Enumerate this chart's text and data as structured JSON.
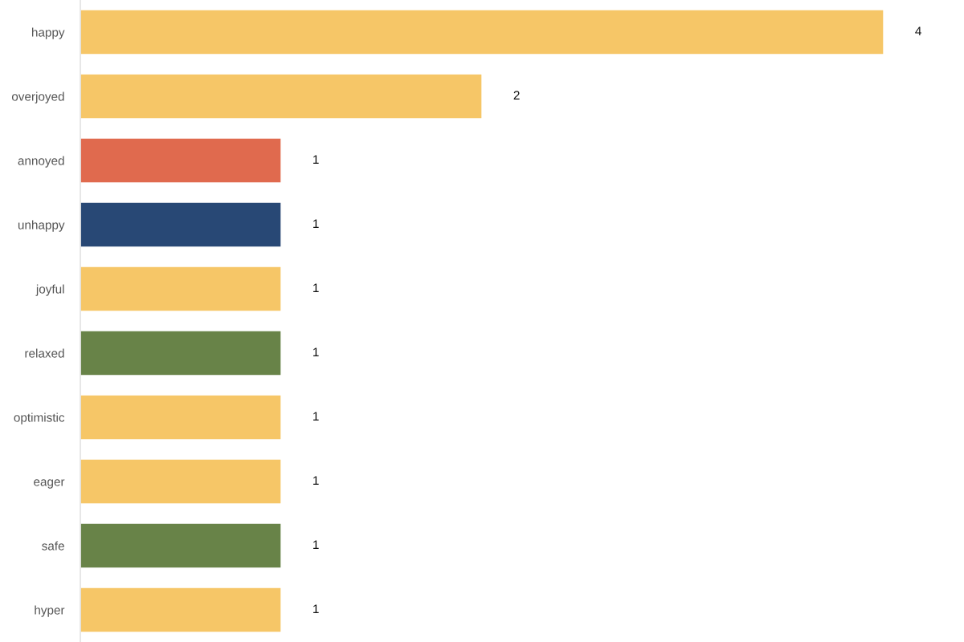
{
  "chart_data": {
    "type": "bar",
    "orientation": "horizontal",
    "categories": [
      "happy",
      "overjoyed",
      "annoyed",
      "unhappy",
      "joyful",
      "relaxed",
      "optimistic",
      "eager",
      "safe",
      "hyper"
    ],
    "values": [
      4,
      2,
      1,
      1,
      1,
      1,
      1,
      1,
      1,
      1
    ],
    "colors": [
      "#f6c667",
      "#f6c667",
      "#e06a4e",
      "#284875",
      "#f6c667",
      "#688348",
      "#f6c667",
      "#f6c667",
      "#688348",
      "#f6c667"
    ],
    "tick_labels": "y",
    "data_labels": true
  }
}
